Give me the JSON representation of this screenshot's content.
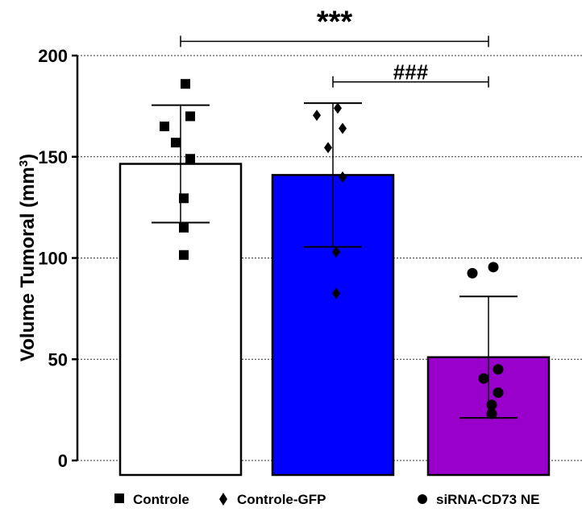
{
  "chart_data": {
    "type": "bar",
    "ylabel_main": "Volume Tumoral (mm",
    "ylabel_sup": "3",
    "ylabel_close": ")",
    "ylim": [
      0,
      200
    ],
    "yticks": [
      "0",
      "50",
      "100",
      "150",
      "200"
    ],
    "grid": true,
    "legend_position": "bottom",
    "categories": [
      "Controle",
      "Controle-GFP",
      "siRNA-CD73 NE"
    ],
    "series": [
      {
        "name": "Controle",
        "mean": 146.5,
        "sd": 29,
        "points": [
          186,
          165,
          170,
          157,
          149,
          129.5,
          115,
          101.5
        ],
        "marker": "square",
        "fill": "#ffffff"
      },
      {
        "name": "Controle-GFP",
        "mean": 141,
        "sd": 35.5,
        "points": [
          174,
          170.5,
          164,
          154.5,
          140,
          103,
          82.5
        ],
        "marker": "diamond",
        "fill": "#0000ff"
      },
      {
        "name": "siRNA-CD73 NE",
        "mean": 51,
        "sd": 30,
        "points": [
          95.5,
          92.5,
          45,
          40.5,
          33.5,
          27.5,
          23
        ],
        "marker": "circle",
        "fill": "#9900cc"
      }
    ],
    "annotations": [
      {
        "label": "***",
        "from": 0,
        "to": 2,
        "y": 207
      },
      {
        "label": "###",
        "from": 1,
        "to": 2,
        "y": 187
      }
    ]
  }
}
